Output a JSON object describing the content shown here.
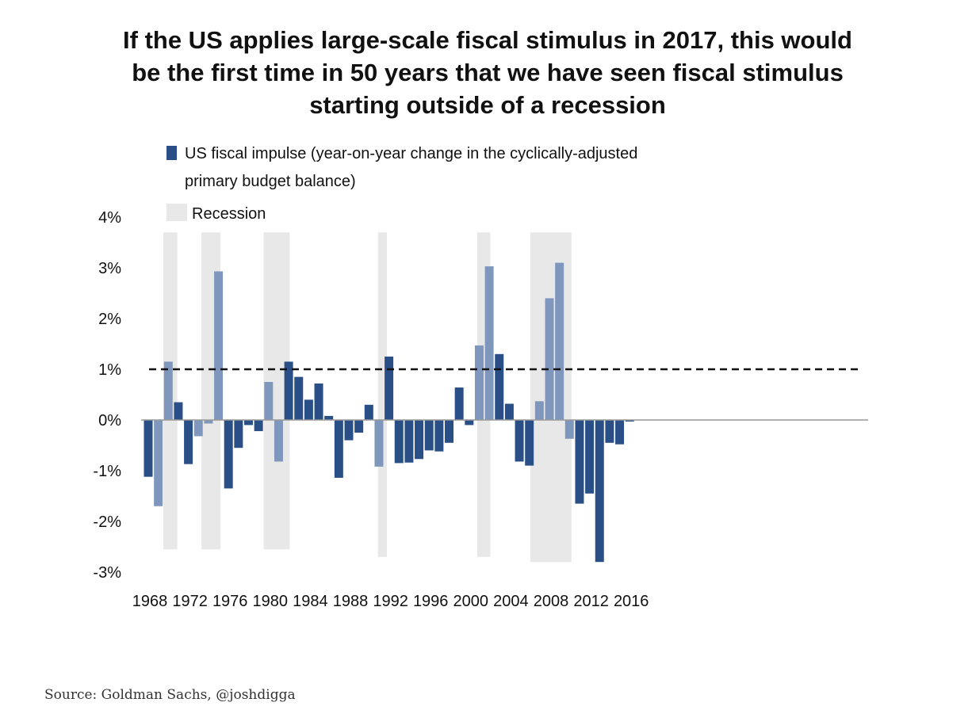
{
  "title_lines": [
    "If the US applies large-scale fiscal stimulus in 2017, this would",
    "be the first time in 50 years that we have seen fiscal stimulus",
    "starting outside of a recession"
  ],
  "source": "Source: Goldman Sachs, @joshdigga",
  "colors": {
    "bar_non_recession": "#2a4f86",
    "bar_recession": "#7f97bd",
    "recession_shade": "#e8e8e8",
    "reference_line": "#111111"
  },
  "chart_data": {
    "type": "bar",
    "legend": {
      "series_line1": "US fiscal impulse (year-on-year change in the cyclically-adjusted",
      "series_line2": "primary budget balance)",
      "recession": "Recession",
      "placement": "top-left"
    },
    "x": [
      1968,
      1969,
      1970,
      1971,
      1972,
      1973,
      1974,
      1975,
      1976,
      1977,
      1978,
      1979,
      1980,
      1981,
      1982,
      1983,
      1984,
      1985,
      1986,
      1987,
      1988,
      1989,
      1990,
      1991,
      1992,
      1993,
      1994,
      1995,
      1996,
      1997,
      1998,
      1999,
      2000,
      2001,
      2002,
      2003,
      2004,
      2005,
      2006,
      2007,
      2008,
      2009,
      2010,
      2011,
      2012,
      2013,
      2014,
      2015,
      2016
    ],
    "values": [
      -1.12,
      -1.7,
      1.15,
      0.35,
      -0.87,
      -0.32,
      -0.07,
      2.93,
      -1.35,
      -0.55,
      -0.1,
      -0.22,
      0.75,
      -0.82,
      1.15,
      0.85,
      0.4,
      0.72,
      0.08,
      -1.14,
      -0.4,
      -0.25,
      0.3,
      -0.92,
      1.25,
      -0.85,
      -0.84,
      -0.77,
      -0.6,
      -0.62,
      -0.45,
      0.64,
      -0.1,
      1.47,
      3.03,
      1.3,
      0.32,
      -0.82,
      -0.9,
      0.37,
      2.4,
      3.1,
      -0.37,
      -1.65,
      -1.45,
      -2.8,
      -0.45,
      -0.48,
      -0.03
    ],
    "recession_years": [
      1969,
      1970,
      1973,
      1974,
      1975,
      1980,
      1981,
      1991,
      2001,
      2002,
      2007,
      2008,
      2009,
      2010
    ],
    "recession_periods": [
      [
        1969.5,
        1970.9
      ],
      [
        1973.3,
        1975.2
      ],
      [
        1979.5,
        1982.1
      ],
      [
        1990.9,
        1991.8
      ],
      [
        2000.8,
        2002.1
      ],
      [
        2006.1,
        2010.2
      ]
    ],
    "reference_line": 1,
    "ylim": [
      -3,
      4
    ],
    "yticks": [
      4,
      3,
      2,
      1,
      0,
      -1,
      -2,
      -3
    ],
    "ytick_labels": [
      "4%",
      "3%",
      "2%",
      "1%",
      "0%",
      "-1%",
      "-2%",
      "-3%"
    ],
    "xtick_years": [
      1968,
      1972,
      1976,
      1980,
      1984,
      1988,
      1992,
      1996,
      2000,
      2004,
      2008,
      2012,
      2016
    ],
    "xtick_labels": [
      "1968",
      "1972",
      "1976",
      "1980",
      "1984",
      "1988",
      "1992",
      "1996",
      "2000",
      "2004",
      "2008",
      "2012",
      "2016"
    ],
    "grid": false
  }
}
